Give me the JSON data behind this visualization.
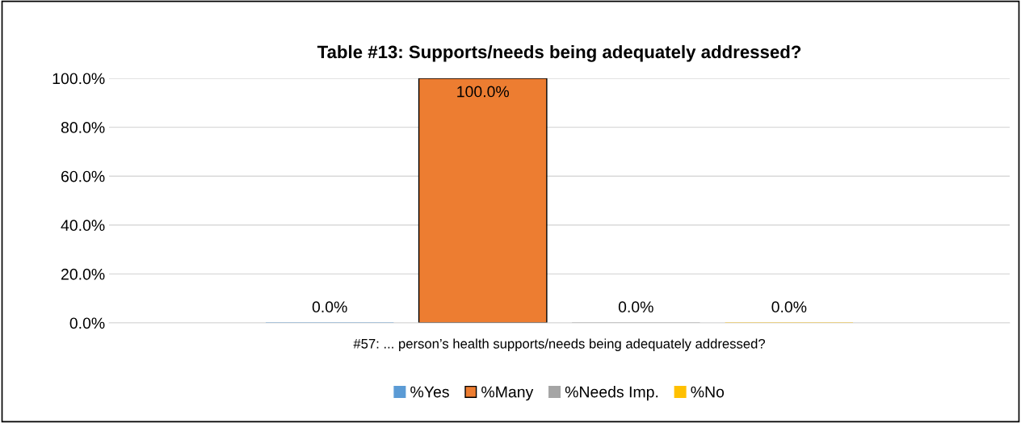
{
  "chart_data": {
    "type": "bar",
    "title": "Table #13: Supports/needs being adequately addressed?",
    "categories": [
      "#57: ... person’s health supports/needs being adequately addressed?"
    ],
    "series": [
      {
        "name": "%Yes",
        "color": "#5b9bd5",
        "values": [
          0
        ],
        "value_labels": [
          "0.0%"
        ]
      },
      {
        "name": "%Many",
        "color": "#ed7d31",
        "values": [
          100
        ],
        "value_labels": [
          "100.0%"
        ]
      },
      {
        "name": "%Needs Imp.",
        "color": "#a5a5a5",
        "values": [
          0
        ],
        "value_labels": [
          "0.0%"
        ]
      },
      {
        "name": "%No",
        "color": "#ffc000",
        "values": [
          0
        ],
        "value_labels": [
          "0.0%"
        ]
      }
    ],
    "ylim": [
      0,
      100
    ],
    "yticks": [
      {
        "value": 0,
        "label": "0.0%"
      },
      {
        "value": 20,
        "label": "20.0%"
      },
      {
        "value": 40,
        "label": "40.0%"
      },
      {
        "value": 60,
        "label": "60.0%"
      },
      {
        "value": 80,
        "label": "80.0%"
      },
      {
        "value": 100,
        "label": "100.0%"
      }
    ],
    "grid": "y",
    "legend": "bottom"
  }
}
